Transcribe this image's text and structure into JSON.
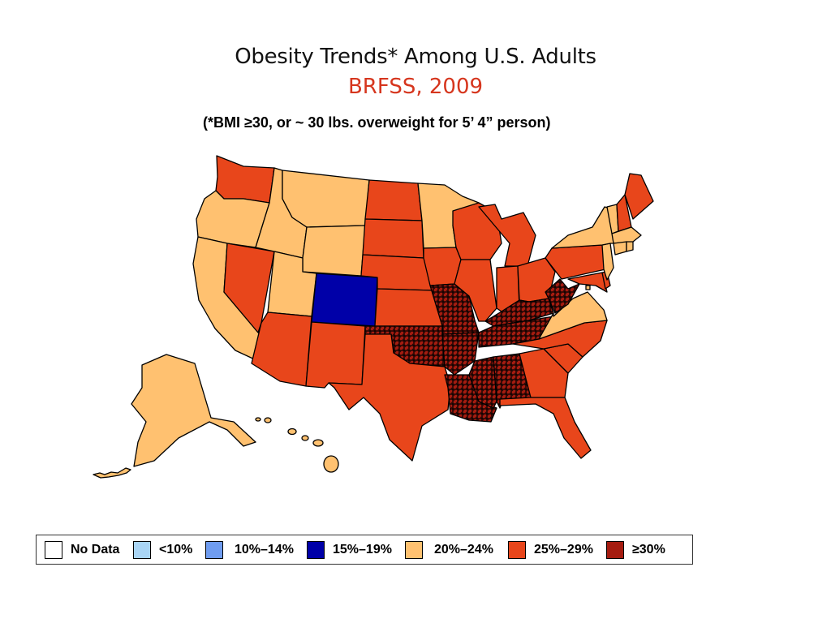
{
  "title": "Obesity Trends* Among U.S. Adults",
  "subtitle": "BRFSS, 2009",
  "footnote": "(*BMI ≥30, or ~ 30 lbs. overweight for 5’ 4” person)",
  "colors": {
    "subtitle": "#d6361e",
    "no_data": "#ffffff",
    "lt10": "#a9d5f5",
    "c10_14": "#6f9cf0",
    "c15_19": "#0000a8",
    "c20_24": "#ffc170",
    "c25_29": "#e8461b",
    "ge30": "#a51c10"
  },
  "legend": [
    {
      "label": "No Data",
      "color_key": "no_data"
    },
    {
      "label": "<10%",
      "color_key": "lt10"
    },
    {
      "label": "10%–14%",
      "color_key": "c10_14"
    },
    {
      "label": "15%–19%",
      "color_key": "c15_19"
    },
    {
      "label": "20%–24%",
      "color_key": "c20_24"
    },
    {
      "label": "25%–29%",
      "color_key": "c25_29"
    },
    {
      "label": "≥30%",
      "color_key": "ge30"
    }
  ],
  "states": {
    "WA": "c25_29",
    "OR": "c20_24",
    "CA": "c20_24",
    "NV": "c25_29",
    "ID": "c20_24",
    "MT": "c20_24",
    "WY": "c20_24",
    "UT": "c20_24",
    "CO": "c15_19",
    "AZ": "c25_29",
    "NM": "c25_29",
    "ND": "c25_29",
    "SD": "c25_29",
    "NE": "c25_29",
    "KS": "c25_29",
    "OK": "ge30",
    "TX": "c25_29",
    "MN": "c20_24",
    "IA": "c25_29",
    "MO": "ge30",
    "AR": "ge30",
    "LA": "ge30",
    "WI": "c25_29",
    "IL": "c25_29",
    "MI": "c25_29",
    "IN": "c25_29",
    "OH": "c25_29",
    "KY": "ge30",
    "TN": "ge30",
    "MS": "ge30",
    "AL": "ge30",
    "GA": "c25_29",
    "FL": "c25_29",
    "SC": "c25_29",
    "NC": "c25_29",
    "VA": "c20_24",
    "WV": "ge30",
    "PA": "c25_29",
    "NY": "c20_24",
    "VT": "c20_24",
    "NH": "c25_29",
    "ME": "c25_29",
    "MA": "c20_24",
    "CT": "c20_24",
    "RI": "c20_24",
    "NJ": "c20_24",
    "DE": "c25_29",
    "MD": "c25_29",
    "DC": "c20_24",
    "AK": "c20_24",
    "HI": "c20_24"
  }
}
